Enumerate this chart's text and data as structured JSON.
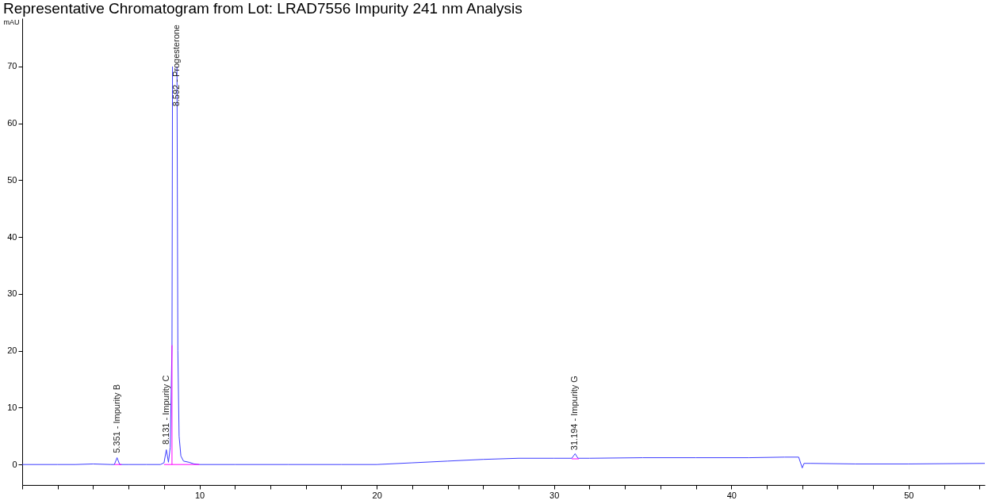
{
  "chart_data": {
    "type": "line",
    "title": "Representative Chromatogram from Lot: LRAD7556 Impurity 241 nm Analysis",
    "ylabel": "mAU",
    "xlim": [
      0,
      54.3
    ],
    "ylim": [
      -3.6,
      78.5
    ],
    "xticks": [
      {
        "value": 0,
        "label": null
      },
      {
        "value": 2,
        "label": null
      },
      {
        "value": 4,
        "label": null
      },
      {
        "value": 6,
        "label": null
      },
      {
        "value": 8,
        "label": null
      },
      10,
      {
        "value": 12,
        "label": null
      },
      {
        "value": 14,
        "label": null
      },
      {
        "value": 16,
        "label": null
      },
      {
        "value": 18,
        "label": null
      },
      20,
      {
        "value": 22,
        "label": null
      },
      {
        "value": 24,
        "label": null
      },
      {
        "value": 26,
        "label": null
      },
      {
        "value": 28,
        "label": null
      },
      30,
      {
        "value": 32,
        "label": null
      },
      {
        "value": 34,
        "label": null
      },
      {
        "value": 36,
        "label": null
      },
      {
        "value": 38,
        "label": null
      },
      40,
      {
        "value": 42,
        "label": null
      },
      {
        "value": 44,
        "label": null
      },
      {
        "value": 46,
        "label": null
      },
      {
        "value": 48,
        "label": null
      },
      50,
      {
        "value": 52,
        "label": null
      },
      {
        "value": 54,
        "label": null
      }
    ],
    "yticks": [
      0,
      10,
      20,
      30,
      40,
      50,
      60,
      70
    ],
    "grid": false,
    "marker": "none",
    "line_style": "solid",
    "series": [
      {
        "color": "#3c3cff",
        "x": [
          0,
          2,
          3,
          4,
          5,
          5.2,
          5.35,
          5.5,
          6,
          7,
          7.8,
          8.0,
          8.13,
          8.25,
          8.35,
          8.45,
          8.48,
          8.5,
          8.7,
          8.73,
          8.78,
          8.85,
          8.95,
          9.1,
          9.4,
          9.7,
          10,
          12,
          15,
          18,
          20,
          22,
          24,
          26,
          28,
          30,
          31.0,
          31.19,
          31.35,
          32,
          35,
          38,
          41,
          43,
          43.8,
          44.0,
          44.1,
          44.5,
          47,
          50,
          54.3
        ],
        "values": [
          0,
          0,
          0,
          0.1,
          0,
          0,
          1.2,
          0,
          0,
          0,
          0,
          0.3,
          2.6,
          0.4,
          3,
          21,
          70,
          null,
          null,
          70,
          20,
          5,
          1.5,
          0.6,
          0.4,
          0.1,
          0,
          0,
          0,
          0,
          0,
          0.3,
          0.6,
          0.9,
          1.1,
          1.1,
          1.1,
          1.9,
          1.1,
          1.1,
          1.2,
          1.2,
          1.2,
          1.3,
          1.3,
          -0.6,
          0.2,
          0.2,
          0.1,
          0.1,
          0.2
        ]
      },
      {
        "color": "#ff00ff",
        "x": [
          5.2,
          5.6
        ],
        "values": [
          0,
          0
        ]
      },
      {
        "color": "#ff00ff",
        "x": [
          8.0,
          10.0
        ],
        "values": [
          0,
          0
        ]
      },
      {
        "color": "#ff00ff",
        "x": [
          8.45,
          8.45
        ],
        "values": [
          0,
          21
        ]
      },
      {
        "color": "#ff00ff",
        "x": [
          31.0,
          31.4
        ],
        "values": [
          1.0,
          1.0
        ]
      }
    ],
    "annotations": [
      {
        "text": "5.351 - Impurity B",
        "x": 5.351,
        "y": 2
      },
      {
        "text": "8.131 - Impurity C",
        "x": 8.131,
        "y": 3.5
      },
      "8.592 - Progesterone",
      {
        "text": "31.194 - Impurity G",
        "x": 31.194,
        "y": 2.5
      }
    ]
  }
}
